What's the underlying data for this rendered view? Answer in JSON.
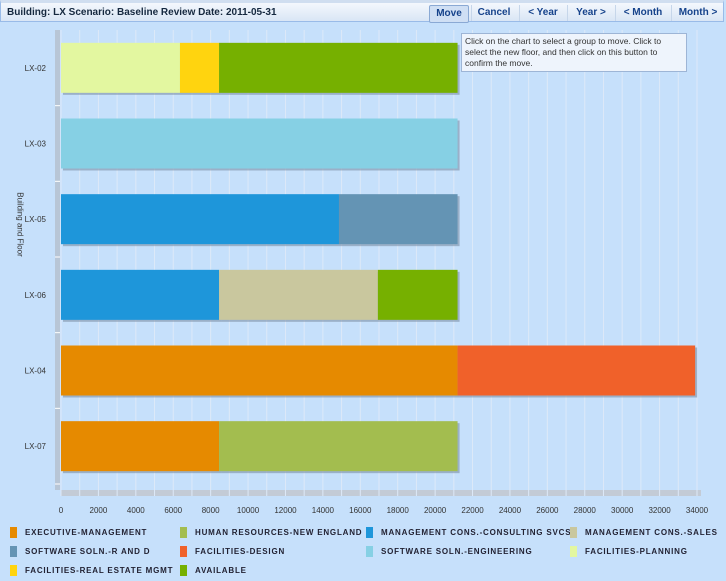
{
  "header": {
    "title": "Building: LX Scenario: Baseline Review Date: 2011-05-31",
    "buttons": [
      "Move",
      "Cancel",
      "< Year",
      "Year >",
      "< Month",
      "Month >"
    ],
    "tooltip": "Click on the chart to select a group to move. Click to select the new floor, and then click on this button to confirm the move."
  },
  "chart_data": {
    "type": "bar",
    "orientation": "horizontal",
    "stacked": true,
    "ylabel": "Building and Floor",
    "xlim": [
      0,
      34000
    ],
    "xticks": [
      "0",
      "2000",
      "4000",
      "6000",
      "8000",
      "10000",
      "12000",
      "14000",
      "16000",
      "18000",
      "20000",
      "22000",
      "24000",
      "26000",
      "28000",
      "30000",
      "32000",
      "34000"
    ],
    "categories": [
      "LX-02",
      "LX-03",
      "LX-05",
      "LX-06",
      "LX-04",
      "LX-07"
    ],
    "series": [
      {
        "name": "EXECUTIVE-MANAGEMENT",
        "color": "#e68a00",
        "values": [
          0,
          0,
          0,
          0,
          21200,
          8450
        ]
      },
      {
        "name": "HUMAN RESOURCES-NEW ENGLAND",
        "color": "#a3bd4f",
        "values": [
          0,
          0,
          0,
          0,
          0,
          12750
        ]
      },
      {
        "name": "MANAGEMENT CONS.-CONSULTING SVCS",
        "color": "#1e96da",
        "values": [
          0,
          0,
          14860,
          8450,
          0,
          0
        ]
      },
      {
        "name": "MANAGEMENT CONS.-SALES",
        "color": "#c9c79e",
        "values": [
          0,
          0,
          0,
          8490,
          0,
          0
        ]
      },
      {
        "name": "SOFTWARE SOLN.-R AND D",
        "color": "#6494b4",
        "values": [
          0,
          0,
          6340,
          0,
          0,
          0
        ]
      },
      {
        "name": "FACILITIES-DESIGN",
        "color": "#f0612a",
        "values": [
          0,
          0,
          0,
          0,
          12700,
          0
        ]
      },
      {
        "name": "SOFTWARE SOLN.-ENGINEERING",
        "color": "#86d0e4",
        "values": [
          0,
          21200,
          0,
          0,
          0,
          0
        ]
      },
      {
        "name": "FACILITIES-PLANNING",
        "color": "#e3f7a0",
        "values": [
          6360,
          0,
          0,
          0,
          0,
          0
        ]
      },
      {
        "name": "FACILITIES-REAL ESTATE MGMT",
        "color": "#ffd40f",
        "values": [
          2090,
          0,
          0,
          0,
          0,
          0
        ]
      },
      {
        "name": "AVAILABLE",
        "color": "#76b000",
        "values": [
          12750,
          0,
          0,
          4260,
          0,
          0
        ]
      }
    ],
    "order": [
      [
        "FACILITIES-PLANNING",
        "FACILITIES-REAL ESTATE MGMT",
        "AVAILABLE"
      ],
      [
        "SOFTWARE SOLN.-ENGINEERING"
      ],
      [
        "MANAGEMENT CONS.-CONSULTING SVCS",
        "SOFTWARE SOLN.-R AND D"
      ],
      [
        "MANAGEMENT CONS.-CONSULTING SVCS",
        "MANAGEMENT CONS.-SALES",
        "AVAILABLE"
      ],
      [
        "EXECUTIVE-MANAGEMENT",
        "FACILITIES-DESIGN"
      ],
      [
        "EXECUTIVE-MANAGEMENT",
        "HUMAN RESOURCES-NEW ENGLAND"
      ]
    ],
    "legend": "bottom"
  }
}
